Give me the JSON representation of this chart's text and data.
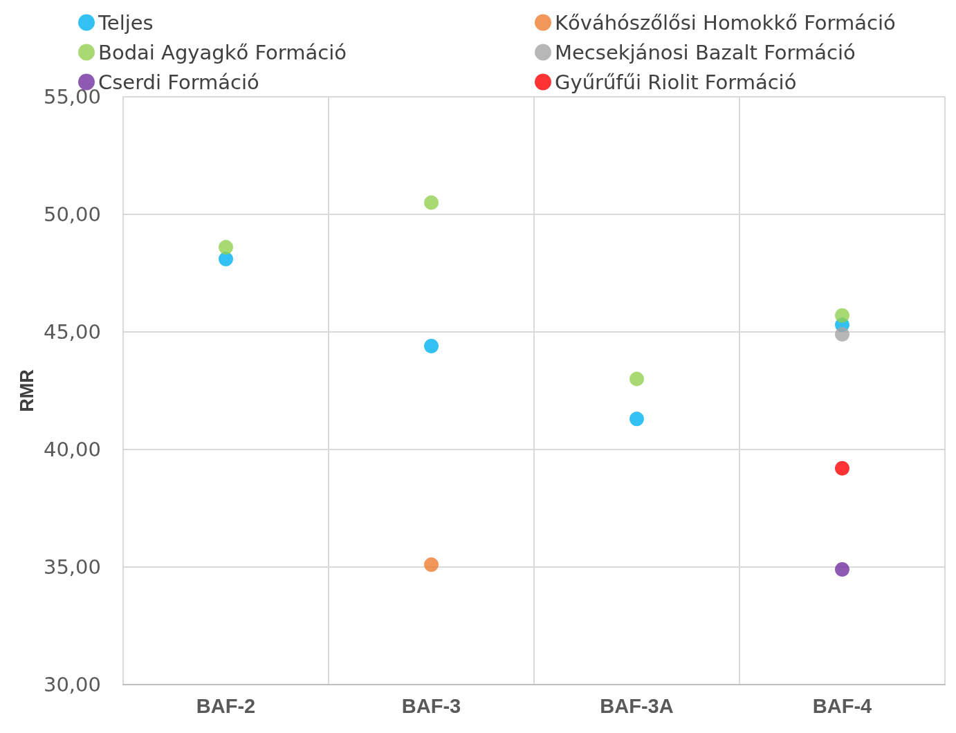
{
  "chart_data": {
    "type": "scatter",
    "ylabel": "RMR",
    "categories": [
      "BAF-2",
      "BAF-3",
      "BAF-3A",
      "BAF-4"
    ],
    "ylim": [
      30,
      55
    ],
    "yticks": [
      {
        "value": 30,
        "label": "30,00"
      },
      {
        "value": 35,
        "label": "35,00"
      },
      {
        "value": 40,
        "label": "40,00"
      },
      {
        "value": 45,
        "label": "45,00"
      },
      {
        "value": 50,
        "label": "50,00"
      },
      {
        "value": 55,
        "label": "55,00"
      }
    ],
    "grid": true,
    "legend": "top",
    "marker": "circle",
    "series": [
      {
        "name": "Teljes",
        "color": "#00b0f0",
        "values": [
          48.1,
          44.4,
          41.3,
          45.3
        ]
      },
      {
        "name": "Kőváhószőlősi Homokkő Formáció",
        "color": "#ed7d31",
        "values": [
          null,
          35.1,
          null,
          null
        ]
      },
      {
        "name": "Bodai Agyagkő Formáció",
        "color": "#92d050",
        "values": [
          48.6,
          50.5,
          43.0,
          45.7
        ]
      },
      {
        "name": "Mecsekjánosi Bazalt Formáció",
        "color": "#a5a5a5",
        "values": [
          null,
          null,
          null,
          44.9
        ]
      },
      {
        "name": "Cserdi Formáció",
        "color": "#7030a0",
        "values": [
          null,
          null,
          null,
          34.9
        ]
      },
      {
        "name": "Gyűrűfűi Riolit Formáció",
        "color": "#ff0000",
        "values": [
          null,
          null,
          null,
          39.2
        ]
      }
    ]
  }
}
